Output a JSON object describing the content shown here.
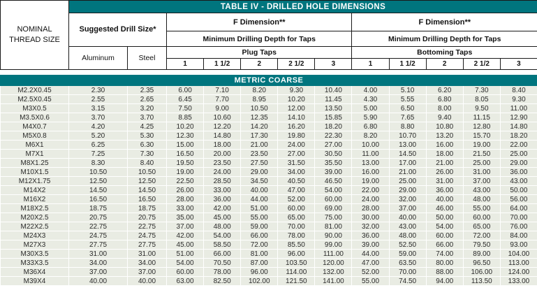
{
  "title": "TABLE IV - DRILLED HOLE DIMENSIONS",
  "section_label": "METRIC COARSE",
  "colors": {
    "teal_band": "#00757E",
    "data_row_bg": "#E9ECE3",
    "grid_line": "#FFFFFF",
    "header_border": "#1A1A1A"
  },
  "header": {
    "nominal_thread_size": "NOMINAL THREAD SIZE",
    "suggested_drill_size": "Suggested Drill Size*",
    "aluminum": "Aluminum",
    "steel": "Steel",
    "f_dimension": "F Dimension**",
    "min_drilling_depth": "Minimum Drilling Depth for Taps",
    "plug_taps": "Plug Taps",
    "bottoming_taps": "Bottoming Taps",
    "insert_lengths": [
      "1",
      "1 1/2",
      "2",
      "2 1/2",
      "3"
    ]
  },
  "table": {
    "columns": [
      "Nominal Thread Size",
      "Suggested Drill Size Aluminum",
      "Suggested Drill Size Steel",
      "Plug Taps 1",
      "Plug Taps 1 1/2",
      "Plug Taps 2",
      "Plug Taps 2 1/2",
      "Plug Taps 3",
      "Bottoming Taps 1",
      "Bottoming Taps 1 1/2",
      "Bottoming Taps 2",
      "Bottoming Taps 2 1/2",
      "Bottoming Taps 3"
    ],
    "rows": [
      [
        "M2.2X0.45",
        "2.30",
        "2.35",
        "6.00",
        "7.10",
        "8.20",
        "9.30",
        "10.40",
        "4.00",
        "5.10",
        "6.20",
        "7.30",
        "8.40"
      ],
      [
        "M2.5X0.45",
        "2.55",
        "2.65",
        "6.45",
        "7.70",
        "8.95",
        "10.20",
        "11.45",
        "4.30",
        "5.55",
        "6.80",
        "8.05",
        "9.30"
      ],
      [
        "M3X0.5",
        "3.15",
        "3.20",
        "7.50",
        "9.00",
        "10.50",
        "12.00",
        "13.50",
        "5.00",
        "6.50",
        "8.00",
        "9.50",
        "11.00"
      ],
      [
        "M3.5X0.6",
        "3.70",
        "3.70",
        "8.85",
        "10.60",
        "12.35",
        "14.10",
        "15.85",
        "5.90",
        "7.65",
        "9.40",
        "11.15",
        "12.90"
      ],
      [
        "M4X0.7",
        "4.20",
        "4.25",
        "10.20",
        "12.20",
        "14.20",
        "16.20",
        "18.20",
        "6.80",
        "8.80",
        "10.80",
        "12.80",
        "14.80"
      ],
      [
        "M5X0.8",
        "5.20",
        "5.30",
        "12.30",
        "14.80",
        "17.30",
        "19.80",
        "22.30",
        "8.20",
        "10.70",
        "13.20",
        "15.70",
        "18.20"
      ],
      [
        "M6X1",
        "6.25",
        "6.30",
        "15.00",
        "18.00",
        "21.00",
        "24.00",
        "27.00",
        "10.00",
        "13.00",
        "16.00",
        "19.00",
        "22.00"
      ],
      [
        "M7X1",
        "7.25",
        "7.30",
        "16.50",
        "20.00",
        "23.50",
        "27.00",
        "30.50",
        "11.00",
        "14.50",
        "18.00",
        "21.50",
        "25.00"
      ],
      [
        "M8X1.25",
        "8.30",
        "8.40",
        "19.50",
        "23.50",
        "27.50",
        "31.50",
        "35.50",
        "13.00",
        "17.00",
        "21.00",
        "25.00",
        "29.00"
      ],
      [
        "M10X1.5",
        "10.50",
        "10.50",
        "19.00",
        "24.00",
        "29.00",
        "34.00",
        "39.00",
        "16.00",
        "21.00",
        "26.00",
        "31.00",
        "36.00"
      ],
      [
        "M12X1.75",
        "12.50",
        "12.50",
        "22.50",
        "28.50",
        "34.50",
        "40.50",
        "46.50",
        "19.00",
        "25.00",
        "31.00",
        "37.00",
        "43.00"
      ],
      [
        "M14X2",
        "14.50",
        "14.50",
        "26.00",
        "33.00",
        "40.00",
        "47.00",
        "54.00",
        "22.00",
        "29.00",
        "36.00",
        "43.00",
        "50.00"
      ],
      [
        "M16X2",
        "16.50",
        "16.50",
        "28.00",
        "36.00",
        "44.00",
        "52.00",
        "60.00",
        "24.00",
        "32.00",
        "40.00",
        "48.00",
        "56.00"
      ],
      [
        "M18X2.5",
        "18.75",
        "18.75",
        "33.00",
        "42.00",
        "51.00",
        "60.00",
        "69.00",
        "28.00",
        "37.00",
        "46.00",
        "55.00",
        "64.00"
      ],
      [
        "M20X2.5",
        "20.75",
        "20.75",
        "35.00",
        "45.00",
        "55.00",
        "65.00",
        "75.00",
        "30.00",
        "40.00",
        "50.00",
        "60.00",
        "70.00"
      ],
      [
        "M22X2.5",
        "22.75",
        "22.75",
        "37.00",
        "48.00",
        "59.00",
        "70.00",
        "81.00",
        "32.00",
        "43.00",
        "54.00",
        "65.00",
        "76.00"
      ],
      [
        "M24X3",
        "24.75",
        "24.75",
        "42.00",
        "54.00",
        "66.00",
        "78.00",
        "90.00",
        "36.00",
        "48.00",
        "60.00",
        "72.00",
        "84.00"
      ],
      [
        "M27X3",
        "27.75",
        "27.75",
        "45.00",
        "58.50",
        "72.00",
        "85.50",
        "99.00",
        "39.00",
        "52.50",
        "66.00",
        "79.50",
        "93.00"
      ],
      [
        "M30X3.5",
        "31.00",
        "31.00",
        "51.00",
        "66.00",
        "81.00",
        "96.00",
        "111.00",
        "44.00",
        "59.00",
        "74.00",
        "89.00",
        "104.00"
      ],
      [
        "M33X3.5",
        "34.00",
        "34.00",
        "54.00",
        "70.50",
        "87.00",
        "103.50",
        "120.00",
        "47.00",
        "63.50",
        "80.00",
        "96.50",
        "113.00"
      ],
      [
        "M36X4",
        "37.00",
        "37.00",
        "60.00",
        "78.00",
        "96.00",
        "114.00",
        "132.00",
        "52.00",
        "70.00",
        "88.00",
        "106.00",
        "124.00"
      ],
      [
        "M39X4",
        "40.00",
        "40.00",
        "63.00",
        "82.50",
        "102.00",
        "121.50",
        "141.00",
        "55.00",
        "74.50",
        "94.00",
        "113.50",
        "133.00"
      ]
    ]
  }
}
